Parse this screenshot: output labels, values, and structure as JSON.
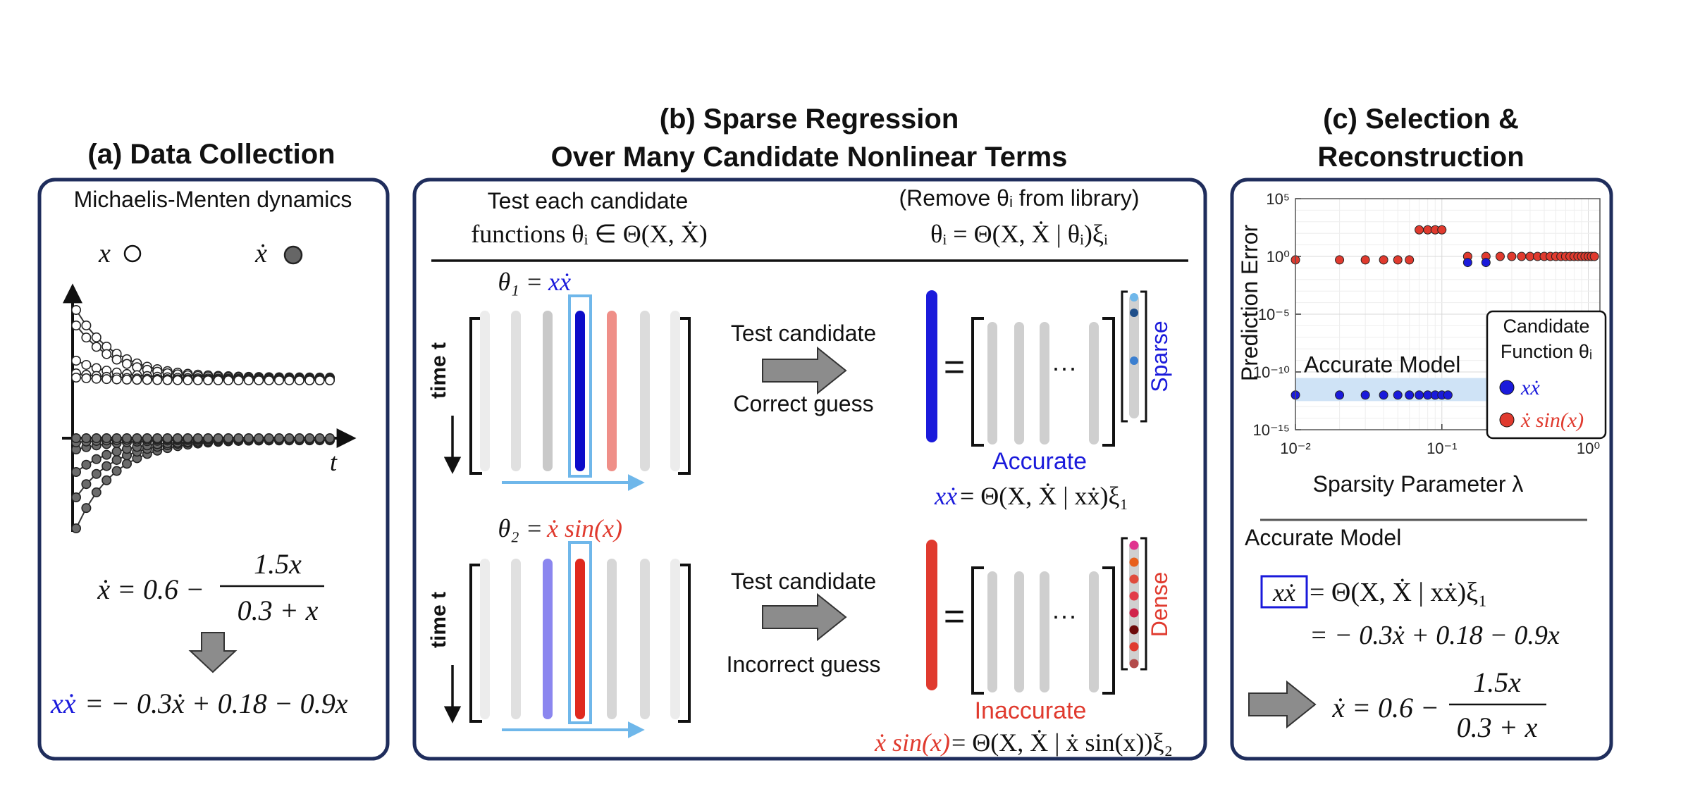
{
  "panel_a": {
    "title": "(a) Data Collection",
    "subtitle": "Michaelis-Menten dynamics",
    "legend_x": "x",
    "legend_xdot": "ẋ",
    "axis_t": "t",
    "eq_lhs": "ẋ = 0.6 −",
    "eq_num": "1.5x",
    "eq_den": "0.3 + x",
    "implicit_lhs": "xẋ",
    "implicit_rhs": "= − 0.3ẋ + 0.18 − 0.9x"
  },
  "panel_b": {
    "title_line1": "(b) Sparse Regression",
    "title_line2": "Over Many Candidate Nonlinear Terms",
    "test_line1": "Test each candidate",
    "test_line2": "functions θᵢ ∈ Θ(X, Ẋ)",
    "remove_line1": "(Remove θᵢ from library)",
    "remove_line2": "θᵢ = Θ(X, Ẋ | θᵢ)ξᵢ",
    "time_label": "time t",
    "ellipsis": "···",
    "equals": "=",
    "row1": {
      "theta_lhs": "θ₁ =",
      "theta_term": "xẋ",
      "action_line1": "Test candidate",
      "action_line2": "Correct guess",
      "vector_label": "Sparse",
      "result": "Accurate",
      "eq_lhs": "xẋ",
      "eq_rhs": "= Θ(X, Ẋ | xẋ)ξ₁"
    },
    "row2": {
      "theta_lhs": "θ₂ =",
      "theta_term": "ẋ sin(x)",
      "action_line1": "Test candidate",
      "action_line2": "Incorrect guess",
      "vector_label": "Dense",
      "result": "Inaccurate",
      "eq_lhs": "ẋ sin(x)",
      "eq_rhs": "= Θ(X, Ẋ | ẋ sin(x))ξ₂"
    }
  },
  "panel_c": {
    "title_line1": "(c) Selection &",
    "title_line2": "Reconstruction",
    "accurate_model_label": "Accurate Model",
    "eq1_lhs": "xẋ",
    "eq1_rhs": "= Θ(X, Ẋ | xẋ)ξ₁",
    "eq2": "= − 0.3ẋ + 0.18 − 0.9x",
    "eq3_lhs": "ẋ = 0.6 −",
    "eq3_num": "1.5x",
    "eq3_den": "0.3 + x"
  },
  "colors": {
    "frame": "#1f2d5c",
    "blue": "#1a1adb",
    "red": "#e03a2e",
    "gray_arrow": "#8c8c8c",
    "light_blue": "#6fb7ea",
    "band": "#cfe3f6"
  },
  "chart_data": {
    "type": "scatter",
    "title": "",
    "xlabel": "Sparsity Parameter λ",
    "ylabel": "Prediction Error",
    "x_scale": "log",
    "y_scale": "log",
    "xlim": [
      0.01,
      1.2
    ],
    "ylim": [
      1e-15,
      100000.0
    ],
    "x_ticks": [
      0.01,
      0.1,
      1
    ],
    "x_tick_labels": [
      "10⁻²",
      "10⁻¹",
      "10⁰"
    ],
    "y_ticks": [
      1e-15,
      1e-10,
      1e-05,
      1,
      100000.0
    ],
    "y_tick_labels": [
      "10⁻¹⁵",
      "10⁻¹⁰",
      "10⁻⁵",
      "10⁰",
      "10⁵"
    ],
    "grid": true,
    "legend_position": "right",
    "legend_title": "Candidate Function θᵢ",
    "band_label": "Accurate Model",
    "band_y": [
      3e-13,
      3e-11
    ],
    "series": [
      {
        "name": "xẋ",
        "color": "#1a1adb",
        "x": [
          0.01,
          0.02,
          0.03,
          0.04,
          0.05,
          0.06,
          0.07,
          0.08,
          0.09,
          0.1,
          0.11,
          0.15,
          0.2
        ],
        "y": [
          1e-12,
          1e-12,
          1e-12,
          1e-12,
          1e-12,
          1e-12,
          1e-12,
          1e-12,
          1e-12,
          1e-12,
          1e-12,
          0.3,
          0.3
        ]
      },
      {
        "name": "ẋ sin(x)",
        "color": "#e03a2e",
        "x": [
          0.01,
          0.02,
          0.03,
          0.04,
          0.05,
          0.06,
          0.07,
          0.08,
          0.09,
          0.1,
          0.15,
          0.2,
          0.25,
          0.3,
          0.35,
          0.4,
          0.45,
          0.5,
          0.55,
          0.6,
          0.65,
          0.7,
          0.75,
          0.8,
          0.85,
          0.9,
          0.95,
          1.0,
          1.05,
          1.1
        ],
        "y": [
          0.5,
          0.5,
          0.5,
          0.5,
          0.5,
          0.5,
          200,
          200,
          200,
          200,
          1,
          1,
          1,
          1,
          1,
          1,
          1,
          1,
          1,
          1,
          1,
          1,
          1,
          1,
          1,
          1,
          1,
          1,
          1,
          1
        ]
      }
    ]
  }
}
